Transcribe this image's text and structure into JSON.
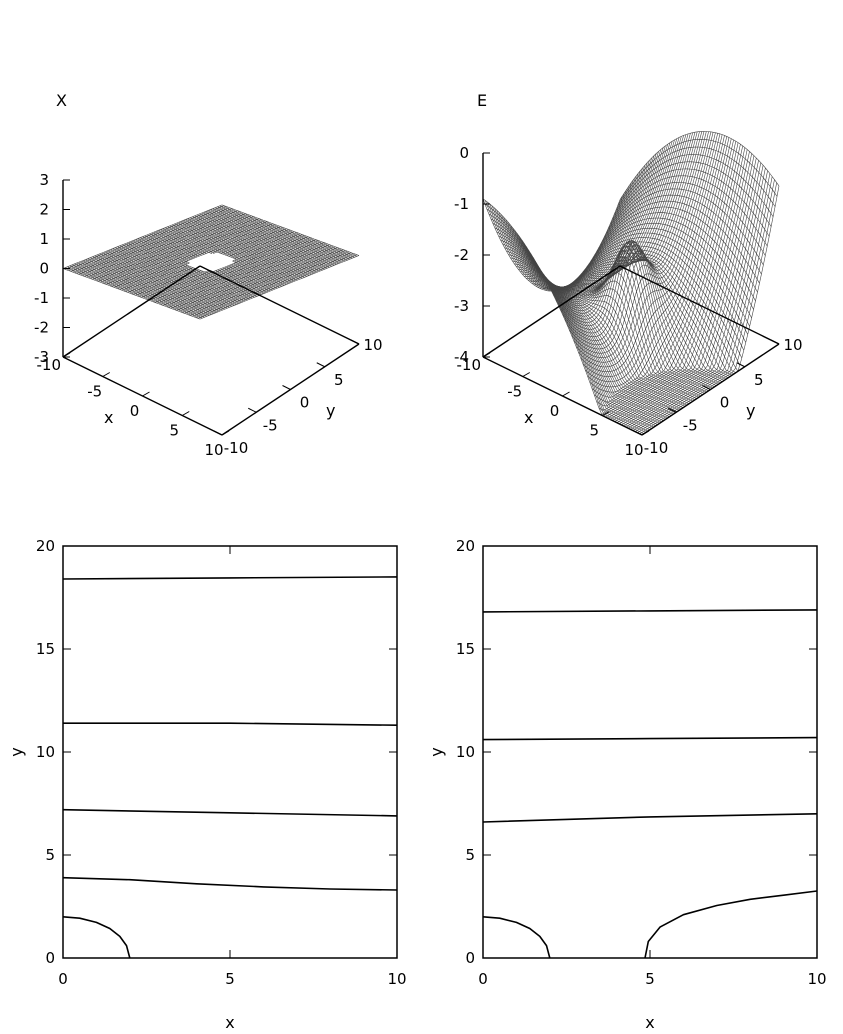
{
  "chart_data": [
    {
      "type": "surface",
      "title": "X",
      "xlabel": "x",
      "ylabel": "y",
      "x_ticks": [
        "-10",
        "-5",
        "0",
        "5",
        "10"
      ],
      "y_ticks": [
        "-10",
        "-5",
        "0",
        "5",
        "10"
      ],
      "z_ticks": [
        "3",
        "2",
        "1",
        "0",
        "-1",
        "-2",
        "-3"
      ],
      "xlim": [
        -10,
        10
      ],
      "ylim": [
        -10,
        10
      ],
      "zlim": [
        -3,
        3
      ],
      "grid": false
    },
    {
      "type": "surface",
      "title": "E",
      "xlabel": "x",
      "ylabel": "y",
      "x_ticks": [
        "-10",
        "-5",
        "0",
        "5",
        "10"
      ],
      "y_ticks": [
        "-10",
        "-5",
        "0",
        "5",
        "10"
      ],
      "z_ticks": [
        "0",
        "-1",
        "-2",
        "-3",
        "-4"
      ],
      "xlim": [
        -10,
        10
      ],
      "ylim": [
        -10,
        10
      ],
      "zlim": [
        -4,
        0
      ],
      "grid": false
    },
    {
      "type": "line",
      "xlabel": "x",
      "ylabel": "y",
      "xlim": [
        0,
        10
      ],
      "ylim": [
        0,
        20
      ],
      "x_ticks": [
        "0",
        "5",
        "10"
      ],
      "y_ticks": [
        "0",
        "5",
        "10",
        "15",
        "20"
      ],
      "grid": false,
      "series": [
        {
          "x": [
            0,
            5,
            10
          ],
          "values": [
            18.4,
            18.45,
            18.5
          ]
        },
        {
          "x": [
            0,
            5,
            10
          ],
          "values": [
            11.4,
            11.4,
            11.3
          ]
        },
        {
          "x": [
            0,
            5,
            10
          ],
          "values": [
            7.2,
            7.05,
            6.9
          ]
        },
        {
          "x": [
            0,
            2,
            4,
            6,
            8,
            10
          ],
          "values": [
            3.9,
            3.8,
            3.6,
            3.45,
            3.35,
            3.3
          ]
        },
        {
          "x": [
            0,
            0.5,
            1.0,
            1.4,
            1.7,
            1.9,
            2.0
          ],
          "values": [
            2.0,
            1.93,
            1.73,
            1.43,
            1.05,
            0.6,
            0.0
          ]
        }
      ]
    },
    {
      "type": "line",
      "xlabel": "x",
      "ylabel": "y",
      "xlim": [
        0,
        10
      ],
      "ylim": [
        0,
        20
      ],
      "x_ticks": [
        "0",
        "5",
        "10"
      ],
      "y_ticks": [
        "0",
        "5",
        "10",
        "15",
        "20"
      ],
      "grid": false,
      "series": [
        {
          "x": [
            0,
            5,
            10
          ],
          "values": [
            16.8,
            16.85,
            16.9
          ]
        },
        {
          "x": [
            0,
            5,
            10
          ],
          "values": [
            10.6,
            10.65,
            10.7
          ]
        },
        {
          "x": [
            0,
            5,
            10
          ],
          "values": [
            6.6,
            6.85,
            7.0
          ]
        },
        {
          "x": [
            0,
            0.5,
            1.0,
            1.4,
            1.7,
            1.9,
            2.0
          ],
          "values": [
            2.0,
            1.93,
            1.73,
            1.43,
            1.05,
            0.6,
            0.0
          ]
        },
        {
          "x": [
            4.85,
            4.95,
            5.3,
            6.0,
            7.0,
            8.0,
            9.0,
            10.0
          ],
          "values": [
            0.0,
            0.8,
            1.5,
            2.1,
            2.55,
            2.85,
            3.05,
            3.25
          ]
        }
      ]
    }
  ]
}
